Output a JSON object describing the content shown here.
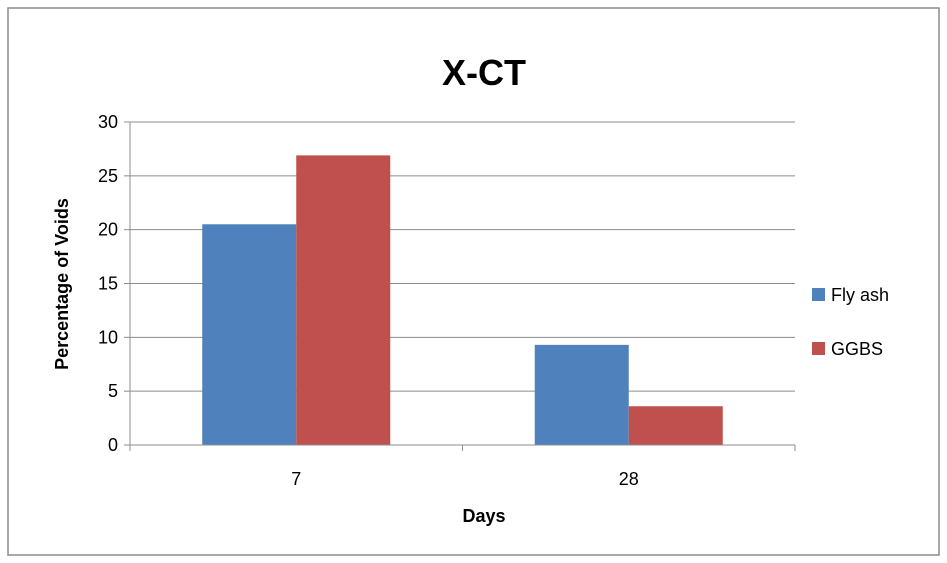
{
  "chart_data": {
    "type": "bar",
    "title": "X-CT",
    "xlabel": "Days",
    "ylabel": "Percentage  of Voids",
    "categories": [
      "7",
      "28"
    ],
    "series": [
      {
        "name": "Fly ash",
        "color": "#4F81BD",
        "values": [
          20.5,
          9.3
        ]
      },
      {
        "name": "GGBS",
        "color": "#C0504D",
        "values": [
          26.9,
          3.6
        ]
      }
    ],
    "ylim": [
      0,
      30
    ],
    "yticks": [
      0,
      5,
      10,
      15,
      20,
      25,
      30
    ],
    "grid": true,
    "legend_position": "right"
  }
}
